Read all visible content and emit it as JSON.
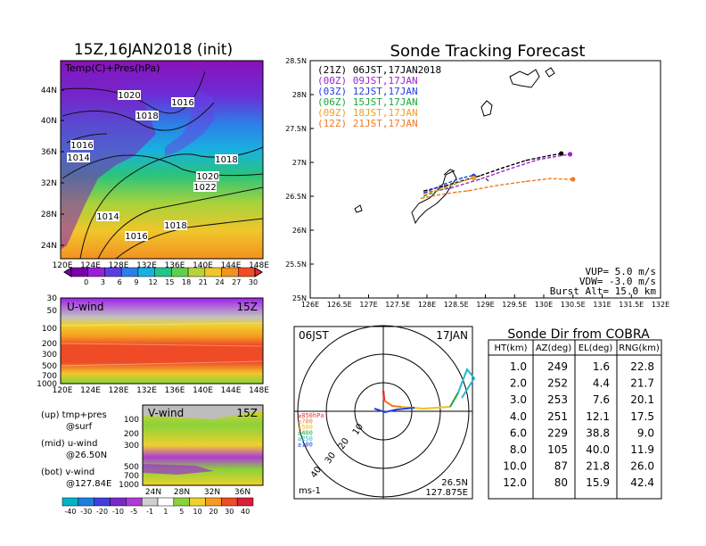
{
  "left": {
    "title": "15Z,16JAN2018 (init)",
    "map_label": "Temp(C)+Pres(hPa)",
    "lat_ticks": [
      "44N",
      "40N",
      "36N",
      "32N",
      "28N",
      "24N"
    ],
    "lon_ticks": [
      "120E",
      "124E",
      "128E",
      "132E",
      "136E",
      "140E",
      "144E",
      "148E"
    ],
    "isobars": [
      "1020",
      "1016",
      "1018",
      "1016",
      "1014",
      "1018",
      "1020",
      "1022",
      "1014",
      "1016",
      "1018"
    ],
    "temp_scale": [
      "0",
      "3",
      "6",
      "9",
      "12",
      "15",
      "18",
      "21",
      "24",
      "27",
      "30"
    ],
    "temp_colors": [
      "#7a00a8",
      "#9a1fd6",
      "#5a3fe0",
      "#2c7fe8",
      "#19b0e0",
      "#22c48a",
      "#5fd04a",
      "#b8d23a",
      "#f0c62c",
      "#f2921f",
      "#ee4d27"
    ],
    "u_panel": {
      "label": "U-wind",
      "time": "15Z",
      "y_ticks": [
        "30",
        "50",
        "100",
        "200",
        "300",
        "500",
        "700",
        "1000"
      ]
    },
    "v_panel": {
      "label": "V-wind",
      "time": "15Z",
      "y_ticks": [
        "100",
        "200",
        "300",
        "500",
        "700",
        "1000"
      ],
      "x_ticks": [
        "24N",
        "28N",
        "32N",
        "36N"
      ]
    },
    "notes": [
      {
        "line1": "(up) tmp+pres",
        "line2": "@surf"
      },
      {
        "line1": "(mid) u-wind",
        "line2": "@26.50N"
      },
      {
        "line1": "(bot) v-wind",
        "line2": "@127.84E"
      }
    ],
    "wind_scale": [
      "-40",
      "-30",
      "-20",
      "-10",
      "-5",
      "-1",
      "1",
      "5",
      "10",
      "20",
      "30",
      "40"
    ],
    "wind_colors": [
      "#00b4c8",
      "#1f7fe0",
      "#3f3fe0",
      "#7a28c8",
      "#b03ad8",
      "#cfcfcf",
      "#ffffff",
      "#8ad23a",
      "#f0d02c",
      "#f59a22",
      "#ee4b26",
      "#d81e3a"
    ]
  },
  "chart_data": {
    "type": "line",
    "title": "Sonde Tracking Forecast",
    "x_ticks": [
      "126E",
      "126.5E",
      "127E",
      "127.5E",
      "128E",
      "128.5E",
      "129E",
      "129.5E",
      "130E",
      "130.5E",
      "131E",
      "131.5E",
      "132E"
    ],
    "y_ticks": [
      "25N",
      "25.5N",
      "26N",
      "26.5N",
      "27N",
      "27.5N",
      "28N",
      "28.5N"
    ],
    "xlim": [
      126,
      132
    ],
    "ylim": [
      25,
      28.5
    ],
    "series": [
      {
        "name": "(21Z)  06JST,17JAN2018",
        "color": "#000000",
        "x": [
          127.95,
          128.3,
          128.6,
          128.9,
          129.3,
          129.7,
          130.1,
          130.3
        ],
        "y": [
          26.58,
          26.65,
          26.73,
          26.8,
          26.92,
          27.03,
          27.1,
          27.13
        ]
      },
      {
        "name": "(00Z)  09JST,17JAN",
        "color": "#9b27c9",
        "x": [
          127.95,
          128.4,
          128.9,
          129.4,
          129.9,
          130.3,
          130.45
        ],
        "y": [
          26.55,
          26.62,
          26.75,
          26.9,
          27.04,
          27.1,
          27.12
        ]
      },
      {
        "name": "(03Z)  12JST,17JAN",
        "color": "#2440e0",
        "x": [
          127.95,
          128.3,
          128.6,
          128.75,
          128.8
        ],
        "y": [
          26.55,
          26.68,
          26.77,
          26.8,
          26.8
        ]
      },
      {
        "name": "(06Z)  15JST,17JAN",
        "color": "#1aa83a",
        "x": [
          127.95,
          128.3,
          128.6,
          128.75,
          128.8
        ],
        "y": [
          26.5,
          26.62,
          26.72,
          26.76,
          26.77
        ]
      },
      {
        "name": "(09Z)  18JST,17JAN",
        "color": "#f0a020",
        "x": [
          127.95,
          128.3,
          128.6,
          128.75,
          128.8
        ],
        "y": [
          26.52,
          26.63,
          26.72,
          26.76,
          26.77
        ]
      },
      {
        "name": "(12Z)  21JST,17JAN",
        "color": "#f07a20",
        "x": [
          127.9,
          128.2,
          128.5,
          128.7,
          129.2,
          129.7,
          130.1,
          130.5
        ],
        "y": [
          26.47,
          26.52,
          26.56,
          26.58,
          26.66,
          26.72,
          26.76,
          26.75
        ]
      }
    ],
    "params": [
      "VUP=  5.0 m/s",
      "VDW= -3.0 m/s",
      "Burst Alt= 15.0 km"
    ]
  },
  "polar": {
    "left_label": "06JST",
    "right_label": "17JAN",
    "bottom_right_line1": "26.5N",
    "bottom_right_line2": "127.875E",
    "units": "ms-1",
    "ring_labels": [
      "10",
      "20",
      "30",
      "40"
    ],
    "levels": [
      {
        "label": "≥850hPa",
        "color": "#ee3030"
      },
      {
        "label": "≥700",
        "color": "#f07a20"
      },
      {
        "label": "≥500",
        "color": "#f0c020"
      },
      {
        "label": "≥400",
        "color": "#1aa83a"
      },
      {
        "label": "≥250",
        "color": "#20b8d0"
      },
      {
        "label": "≥100",
        "color": "#2440e0"
      }
    ]
  },
  "table": {
    "title": "Sonde Dir from COBRA",
    "headers": [
      "HT(km)",
      "AZ(deg)",
      "EL(deg)",
      "RNG(km)"
    ],
    "rows": [
      [
        "1.0",
        "249",
        "1.6",
        "22.8"
      ],
      [
        "2.0",
        "252",
        "4.4",
        "21.7"
      ],
      [
        "3.0",
        "253",
        "7.6",
        "20.1"
      ],
      [
        "4.0",
        "251",
        "12.1",
        "17.5"
      ],
      [
        "6.0",
        "229",
        "38.8",
        "9.0"
      ],
      [
        "8.0",
        "105",
        "40.0",
        "11.9"
      ],
      [
        "10.0",
        "87",
        "21.8",
        "26.0"
      ],
      [
        "12.0",
        "80",
        "15.9",
        "42.4"
      ]
    ]
  }
}
